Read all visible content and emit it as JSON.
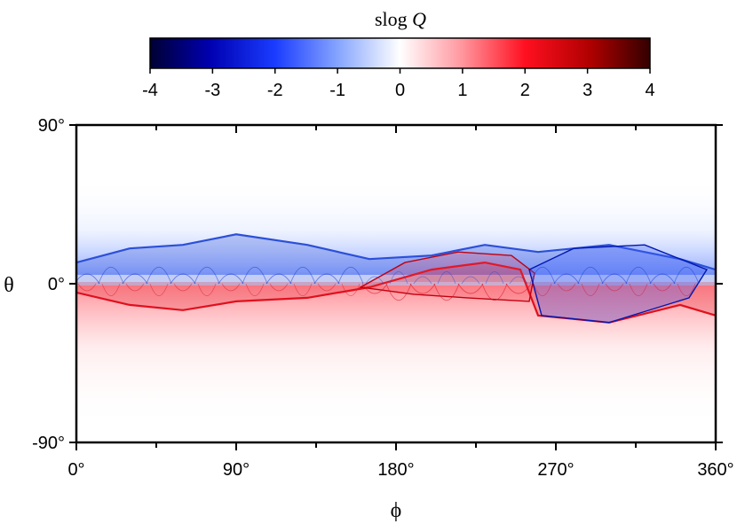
{
  "chart_data": {
    "type": "heatmap",
    "title": "",
    "xlabel": "ϕ",
    "ylabel": "θ",
    "xlim": [
      0,
      360
    ],
    "ylim": [
      -90,
      90
    ],
    "xticks": [
      {
        "value": 0,
        "label": "0°"
      },
      {
        "value": 90,
        "label": "90°"
      },
      {
        "value": 180,
        "label": "180°"
      },
      {
        "value": 270,
        "label": "270°"
      },
      {
        "value": 360,
        "label": "360°"
      }
    ],
    "yticks": [
      {
        "value": 90,
        "label": "90°"
      },
      {
        "value": 0,
        "label": "0°"
      },
      {
        "value": -90,
        "label": "-90°"
      }
    ],
    "colorbar": {
      "label_prefix": "slog",
      "label_var": "Q",
      "range": [
        -4,
        4
      ],
      "ticks": [
        -4,
        -3,
        -2,
        -1,
        0,
        1,
        2,
        3,
        4
      ],
      "tick_labels": [
        "-4",
        "-3",
        "-2",
        "-1",
        "0",
        "1",
        "2",
        "3",
        "4"
      ],
      "colors": [
        "#000033",
        "#0000cc",
        "#2a55ff",
        "#ffffff",
        "#ff2a3a",
        "#cc0000",
        "#330000"
      ]
    },
    "series": [
      {
        "sign": "negative",
        "color": "#2b4fd8",
        "description_points": [
          [
            0,
            12
          ],
          [
            30,
            20
          ],
          [
            60,
            22
          ],
          [
            90,
            28
          ],
          [
            130,
            22
          ],
          [
            165,
            14
          ],
          [
            200,
            16
          ],
          [
            230,
            22
          ],
          [
            260,
            18
          ],
          [
            300,
            22
          ],
          [
            340,
            14
          ],
          [
            360,
            8
          ]
        ]
      },
      {
        "sign": "positive",
        "color": "#e0101e",
        "description_points": [
          [
            0,
            -5
          ],
          [
            30,
            -12
          ],
          [
            60,
            -15
          ],
          [
            90,
            -10
          ],
          [
            130,
            -8
          ],
          [
            165,
            -2
          ],
          [
            200,
            8
          ],
          [
            230,
            12
          ],
          [
            250,
            8
          ],
          [
            260,
            -18
          ],
          [
            300,
            -22
          ],
          [
            340,
            -12
          ],
          [
            360,
            -18
          ]
        ]
      }
    ]
  }
}
